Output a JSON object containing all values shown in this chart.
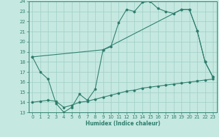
{
  "xlabel": "Humidex (Indice chaleur)",
  "bg_color": "#c5e8e0",
  "grid_color": "#9ecec5",
  "line_color": "#2e7d6e",
  "xlim": [
    -0.5,
    23.5
  ],
  "ylim": [
    13,
    24
  ],
  "xticks": [
    0,
    1,
    2,
    3,
    4,
    5,
    6,
    7,
    8,
    9,
    10,
    11,
    12,
    13,
    14,
    15,
    16,
    17,
    18,
    19,
    20,
    21,
    22,
    23
  ],
  "yticks": [
    13,
    14,
    15,
    16,
    17,
    18,
    19,
    20,
    21,
    22,
    23,
    24
  ],
  "line1_x": [
    0,
    1,
    2,
    3,
    4,
    5,
    6,
    7,
    8,
    9,
    10,
    11,
    12,
    13,
    14,
    15,
    16,
    17,
    18,
    19,
    20,
    21,
    22,
    23
  ],
  "line1_y": [
    18.5,
    17.0,
    16.3,
    13.9,
    13.0,
    13.5,
    14.8,
    14.2,
    15.3,
    19.2,
    19.5,
    21.9,
    23.2,
    23.0,
    23.9,
    24.0,
    23.3,
    23.0,
    22.8,
    23.2,
    23.2,
    21.1,
    18.0,
    16.5
  ],
  "line2_x": [
    0,
    9,
    19,
    20,
    21,
    22,
    23
  ],
  "line2_y": [
    18.5,
    19.2,
    23.2,
    23.2,
    21.1,
    18.0,
    16.5
  ],
  "line3_x": [
    0,
    1,
    2,
    3,
    4,
    5,
    6,
    7,
    8,
    9,
    10,
    11,
    12,
    13,
    14,
    15,
    16,
    17,
    18,
    19,
    20,
    21,
    22,
    23
  ],
  "line3_y": [
    14.0,
    14.1,
    14.2,
    14.1,
    13.5,
    13.7,
    14.0,
    14.1,
    14.3,
    14.5,
    14.7,
    14.9,
    15.1,
    15.2,
    15.4,
    15.5,
    15.6,
    15.7,
    15.8,
    15.9,
    16.0,
    16.1,
    16.2,
    16.3
  ]
}
